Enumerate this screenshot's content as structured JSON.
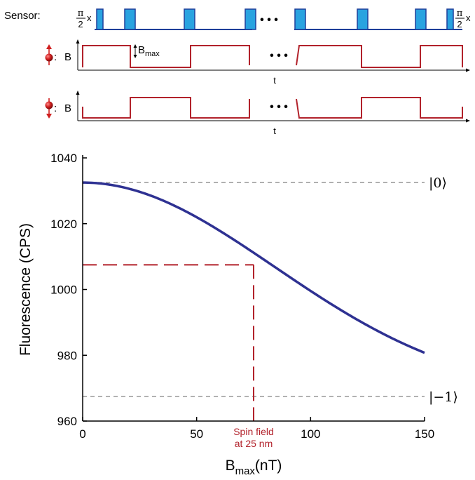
{
  "colors": {
    "curve": "#2e3192",
    "marker": "#b2222b",
    "pulse_fill": "#29a3e0",
    "pulse_stroke": "#1f3f9a",
    "reference": "#a6a6a6",
    "axis": "#000000"
  },
  "icons": {
    "spin_up": "spin-up-arrow-ball-icon",
    "spin_down": "spin-down-arrow-ball-icon"
  },
  "schematic": {
    "sensor_label": "Sensor:",
    "pi_numerator": "π",
    "pi_denominator": "2",
    "pulse_axis": "x",
    "ellipsis": "• • •",
    "b_label": "B",
    "bmax_label": "B",
    "bmax_subscript": "max",
    "t_label": "t",
    "spin_colon": ":"
  },
  "chart_data": {
    "type": "line",
    "title": "",
    "xlabel": "B",
    "xlabel_subscript": "max",
    "xlabel_unit": "(nT)",
    "ylabel": "Fluorescence (CPS)",
    "xlim": [
      0,
      150
    ],
    "ylim": [
      960,
      1040
    ],
    "xticks": [
      0,
      50,
      100,
      150
    ],
    "yticks": [
      960,
      980,
      1000,
      1020,
      1040
    ],
    "grid": false,
    "series": [
      {
        "model": "gaussian",
        "x": [
          0,
          10,
          20,
          30,
          40,
          50,
          60,
          70,
          80,
          90,
          100,
          110,
          120,
          130,
          140,
          150
        ],
        "y": [
          1032.5,
          1032.1,
          1030.9,
          1028.9,
          1026.3,
          1022.9,
          1018.9,
          1014.5,
          1009.7,
          1004.7,
          999.5,
          994.3,
          989.2,
          984.3,
          979.7,
          975.4
        ]
      }
    ],
    "reference_lines": [
      {
        "y": 1032.5,
        "label": "|0⟩"
      },
      {
        "y": 967.5,
        "label": "|−1⟩"
      }
    ],
    "marker": {
      "x": 75,
      "y": 1007.5,
      "label_line1": "Spin field",
      "label_line2": "at 25 nm"
    }
  }
}
